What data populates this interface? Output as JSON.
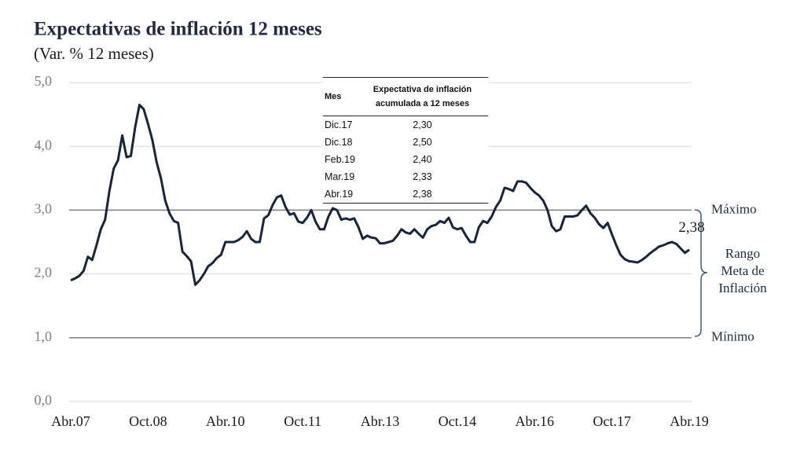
{
  "chart_data": {
    "type": "line",
    "title": "Expectativas de inflación 12 meses",
    "subtitle": "(Var. % 12 meses)",
    "categories": [
      "Abr.07",
      null,
      null,
      null,
      null,
      null,
      null,
      null,
      null,
      null,
      null,
      null,
      null,
      null,
      null,
      null,
      null,
      null,
      "Oct.08",
      null,
      null,
      null,
      null,
      null,
      null,
      null,
      null,
      null,
      null,
      null,
      null,
      null,
      null,
      null,
      null,
      null,
      "Abr.10",
      null,
      null,
      null,
      null,
      null,
      null,
      null,
      null,
      null,
      null,
      null,
      null,
      null,
      null,
      null,
      null,
      null,
      "Oct.11",
      null,
      null,
      null,
      null,
      null,
      null,
      null,
      null,
      null,
      null,
      null,
      null,
      null,
      null,
      null,
      null,
      null,
      "Abr.13",
      null,
      null,
      null,
      null,
      null,
      null,
      null,
      null,
      null,
      null,
      null,
      null,
      null,
      null,
      null,
      null,
      null,
      "Oct.14",
      null,
      null,
      null,
      null,
      null,
      null,
      null,
      null,
      null,
      null,
      null,
      null,
      null,
      null,
      null,
      null,
      null,
      "Abr.16",
      null,
      null,
      null,
      null,
      null,
      null,
      null,
      null,
      null,
      null,
      null,
      null,
      null,
      null,
      null,
      null,
      null,
      "Oct.17",
      null,
      null,
      null,
      null,
      null,
      null,
      null,
      null,
      null,
      null,
      null,
      null,
      null,
      null,
      null,
      null,
      null,
      "Abr.19"
    ],
    "values": [
      1.9,
      1.93,
      1.97,
      2.05,
      2.27,
      2.22,
      2.45,
      2.7,
      2.85,
      3.3,
      3.65,
      3.78,
      4.17,
      3.83,
      3.85,
      4.3,
      4.65,
      4.58,
      4.35,
      4.1,
      3.75,
      3.5,
      3.15,
      2.95,
      2.83,
      2.8,
      2.35,
      2.28,
      2.2,
      1.83,
      1.9,
      2.0,
      2.12,
      2.17,
      2.25,
      2.3,
      2.5,
      2.5,
      2.5,
      2.53,
      2.58,
      2.67,
      2.55,
      2.5,
      2.5,
      2.87,
      2.92,
      3.08,
      3.2,
      3.23,
      3.05,
      2.93,
      2.95,
      2.82,
      2.8,
      2.88,
      3.0,
      2.82,
      2.7,
      2.7,
      2.9,
      3.03,
      3.0,
      2.85,
      2.87,
      2.85,
      2.87,
      2.73,
      2.55,
      2.6,
      2.57,
      2.56,
      2.48,
      2.48,
      2.5,
      2.52,
      2.6,
      2.7,
      2.65,
      2.63,
      2.7,
      2.63,
      2.57,
      2.7,
      2.75,
      2.77,
      2.83,
      2.8,
      2.88,
      2.73,
      2.7,
      2.72,
      2.6,
      2.5,
      2.5,
      2.73,
      2.83,
      2.8,
      2.9,
      3.05,
      3.15,
      3.35,
      3.33,
      3.3,
      3.45,
      3.45,
      3.43,
      3.35,
      3.28,
      3.23,
      3.15,
      3.0,
      2.75,
      2.67,
      2.7,
      2.9,
      2.9,
      2.9,
      2.92,
      3.0,
      3.07,
      2.95,
      2.88,
      2.78,
      2.72,
      2.8,
      2.62,
      2.45,
      2.3,
      2.23,
      2.2,
      2.19,
      2.18,
      2.22,
      2.27,
      2.33,
      2.38,
      2.43,
      2.45,
      2.48,
      2.5,
      2.47,
      2.4,
      2.33,
      2.38
    ],
    "color": "#16253d",
    "ylim": [
      0,
      5
    ],
    "yticks": [
      {
        "value": 0,
        "label": "0,0"
      },
      {
        "value": 1,
        "label": "1,0"
      },
      {
        "value": 2,
        "label": "2,0"
      },
      {
        "value": 3,
        "label": "3,0"
      },
      {
        "value": 4,
        "label": "4,0"
      },
      {
        "value": 5,
        "label": "5,0"
      }
    ],
    "grid": true,
    "end_label": {
      "value": 2.38,
      "label": "2,38"
    },
    "reference_lines": [
      {
        "value": 3,
        "label": "Máximo"
      },
      {
        "value": 1,
        "label": "Mínimo"
      }
    ],
    "range_label": [
      "Rango",
      "Meta de",
      "Inflación"
    ],
    "table": {
      "header": [
        "Mes",
        "Expectativa de inflación acumulada a 12 meses"
      ],
      "rows": [
        [
          "Dic.17",
          "2,30"
        ],
        [
          "Dic.18",
          "2,50"
        ],
        [
          "Feb.19",
          "2,40"
        ],
        [
          "Mar.19",
          "2,33"
        ],
        [
          "Abr.19",
          "2,38"
        ]
      ]
    }
  }
}
